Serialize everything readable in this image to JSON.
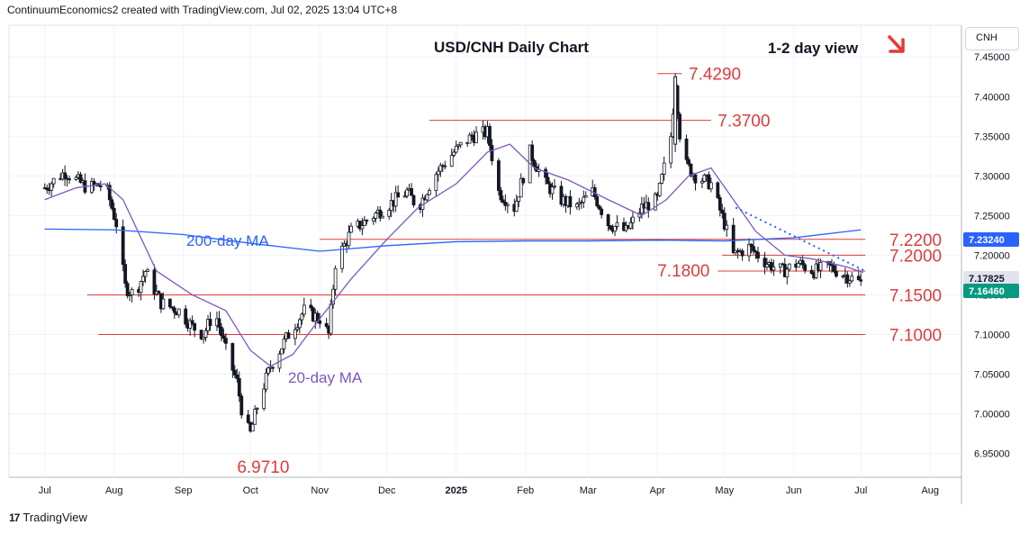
{
  "header": {
    "attribution": "ContinuumEconomics2 created with TradingView.com, Jul 02, 2025 13:04 UTC+8"
  },
  "footer": {
    "logo_text": "17",
    "brand": "TradingView"
  },
  "price_scale": {
    "currency": "CNH"
  },
  "chart_data": {
    "type": "candlestick",
    "title": "USD/CNH Daily Chart",
    "subtitle": "1-2 day view",
    "view_direction": "down",
    "ylim": [
      6.92,
      7.49
    ],
    "y_ticks": [
      "7.45000",
      "7.40000",
      "7.35000",
      "7.30000",
      "7.25000",
      "7.20000",
      "7.15000",
      "7.10000",
      "7.05000",
      "7.00000",
      "6.95000"
    ],
    "x_ticks": [
      "Jul",
      "Aug",
      "Sep",
      "Oct",
      "Nov",
      "Dec",
      "2025",
      "Feb",
      "Mar",
      "Apr",
      "May",
      "Jun",
      "Jul",
      "Aug"
    ],
    "price_badges": [
      {
        "value": "7.23240",
        "color": "#2962ff"
      },
      {
        "value": "7.17825",
        "color": "#e3e3ef",
        "text_color": "#131722"
      },
      {
        "value": "7.16460",
        "color": "#089981"
      }
    ],
    "levels": [
      {
        "value": 7.429,
        "label": "7.4290"
      },
      {
        "value": 7.37,
        "label": "7.3700"
      },
      {
        "value": 7.22,
        "label": "7.2200"
      },
      {
        "value": 7.2,
        "label": "7.2000"
      },
      {
        "value": 7.18,
        "label": "7.1800"
      },
      {
        "value": 7.15,
        "label": "7.1500"
      },
      {
        "value": 7.1,
        "label": "7.1000"
      },
      {
        "value": 6.971,
        "label": "6.9710"
      }
    ],
    "annotations": [
      "200-day MA",
      "20-day MA"
    ],
    "price_path": [
      [
        "2024-07-01",
        7.285
      ],
      [
        "2024-07-10",
        7.305
      ],
      [
        "2024-07-20",
        7.285
      ],
      [
        "2024-07-28",
        7.29
      ],
      [
        "2024-08-02",
        7.24
      ],
      [
        "2024-08-06",
        7.16
      ],
      [
        "2024-08-10",
        7.15
      ],
      [
        "2024-08-15",
        7.18
      ],
      [
        "2024-08-22",
        7.14
      ],
      [
        "2024-08-30",
        7.13
      ],
      [
        "2024-09-05",
        7.11
      ],
      [
        "2024-09-10",
        7.1
      ],
      [
        "2024-09-15",
        7.13
      ],
      [
        "2024-09-20",
        7.08
      ],
      [
        "2024-09-25",
        7.04
      ],
      [
        "2024-09-28",
        6.99
      ],
      [
        "2024-10-01",
        6.975
      ],
      [
        "2024-10-05",
        7.02
      ],
      [
        "2024-10-10",
        7.06
      ],
      [
        "2024-10-18",
        7.1
      ],
      [
        "2024-10-25",
        7.13
      ],
      [
        "2024-11-01",
        7.12
      ],
      [
        "2024-11-05",
        7.1
      ],
      [
        "2024-11-08",
        7.19
      ],
      [
        "2024-11-15",
        7.23
      ],
      [
        "2024-11-25",
        7.25
      ],
      [
        "2024-12-05",
        7.27
      ],
      [
        "2024-12-10",
        7.28
      ],
      [
        "2024-12-15",
        7.26
      ],
      [
        "2024-12-22",
        7.3
      ],
      [
        "2024-12-31",
        7.33
      ],
      [
        "2025-01-08",
        7.35
      ],
      [
        "2025-01-15",
        7.355
      ],
      [
        "2025-01-20",
        7.28
      ],
      [
        "2025-01-27",
        7.26
      ],
      [
        "2025-02-03",
        7.33
      ],
      [
        "2025-02-10",
        7.29
      ],
      [
        "2025-02-17",
        7.27
      ],
      [
        "2025-02-24",
        7.26
      ],
      [
        "2025-03-03",
        7.28
      ],
      [
        "2025-03-10",
        7.24
      ],
      [
        "2025-03-18",
        7.23
      ],
      [
        "2025-03-25",
        7.26
      ],
      [
        "2025-04-01",
        7.27
      ],
      [
        "2025-04-07",
        7.35
      ],
      [
        "2025-04-09",
        7.42
      ],
      [
        "2025-04-12",
        7.32
      ],
      [
        "2025-04-18",
        7.3
      ],
      [
        "2025-04-25",
        7.29
      ],
      [
        "2025-05-01",
        7.24
      ],
      [
        "2025-05-05",
        7.2
      ],
      [
        "2025-05-12",
        7.21
      ],
      [
        "2025-05-20",
        7.19
      ],
      [
        "2025-05-27",
        7.18
      ],
      [
        "2025-06-03",
        7.19
      ],
      [
        "2025-06-10",
        7.18
      ],
      [
        "2025-06-17",
        7.185
      ],
      [
        "2025-06-24",
        7.175
      ],
      [
        "2025-07-01",
        7.165
      ]
    ],
    "series": [
      {
        "name": "200-day MA",
        "color": "#2962ff",
        "values": [
          [
            "2024-07-01",
            7.233
          ],
          [
            "2024-08-01",
            7.232
          ],
          [
            "2024-09-01",
            7.226
          ],
          [
            "2024-10-01",
            7.215
          ],
          [
            "2024-11-01",
            7.205
          ],
          [
            "2024-12-01",
            7.212
          ],
          [
            "2025-01-01",
            7.217
          ],
          [
            "2025-02-01",
            7.218
          ],
          [
            "2025-03-01",
            7.218
          ],
          [
            "2025-04-01",
            7.219
          ],
          [
            "2025-05-01",
            7.218
          ],
          [
            "2025-06-01",
            7.222
          ],
          [
            "2025-07-01",
            7.232
          ]
        ]
      },
      {
        "name": "20-day MA",
        "color": "#7e57c2",
        "values": [
          [
            "2024-07-01",
            7.27
          ],
          [
            "2024-07-15",
            7.285
          ],
          [
            "2024-07-28",
            7.29
          ],
          [
            "2024-08-05",
            7.27
          ],
          [
            "2024-08-20",
            7.18
          ],
          [
            "2024-09-05",
            7.15
          ],
          [
            "2024-09-20",
            7.13
          ],
          [
            "2024-10-01",
            7.08
          ],
          [
            "2024-10-10",
            7.06
          ],
          [
            "2024-10-20",
            7.075
          ],
          [
            "2024-11-01",
            7.12
          ],
          [
            "2024-11-15",
            7.17
          ],
          [
            "2024-12-01",
            7.22
          ],
          [
            "2024-12-15",
            7.26
          ],
          [
            "2025-01-01",
            7.29
          ],
          [
            "2025-01-15",
            7.33
          ],
          [
            "2025-01-25",
            7.34
          ],
          [
            "2025-02-05",
            7.31
          ],
          [
            "2025-02-20",
            7.295
          ],
          [
            "2025-03-10",
            7.27
          ],
          [
            "2025-03-25",
            7.25
          ],
          [
            "2025-04-05",
            7.27
          ],
          [
            "2025-04-15",
            7.3
          ],
          [
            "2025-04-25",
            7.31
          ],
          [
            "2025-05-05",
            7.27
          ],
          [
            "2025-05-15",
            7.23
          ],
          [
            "2025-05-28",
            7.2
          ],
          [
            "2025-06-10",
            7.195
          ],
          [
            "2025-06-25",
            7.185
          ],
          [
            "2025-07-02",
            7.178
          ]
        ]
      }
    ],
    "trendline": [
      [
        "2025-05-06",
        7.26
      ],
      [
        "2025-07-03",
        7.18
      ]
    ]
  }
}
